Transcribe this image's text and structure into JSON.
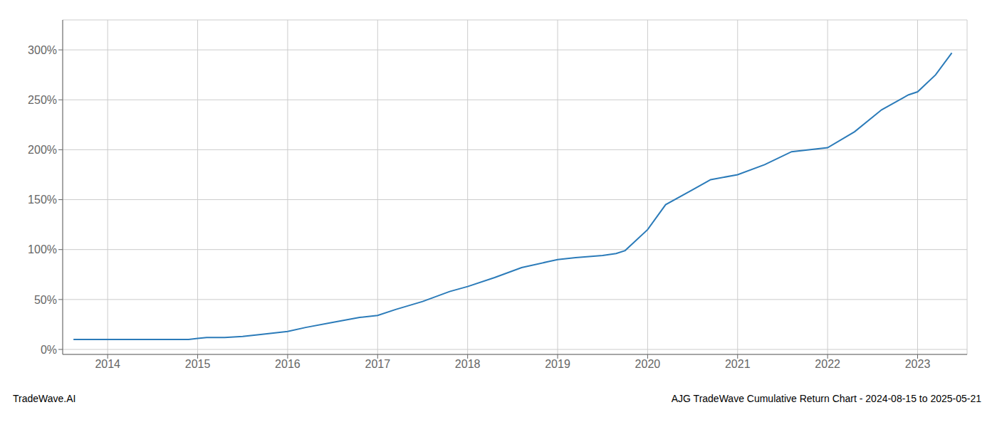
{
  "chart_data": {
    "type": "line",
    "title": "AJG TradeWave Cumulative Return Chart - 2024-08-15 to 2025-05-21",
    "annotations": [
      "TradeWave.AI"
    ],
    "color": "#2b7bb9",
    "grid": true,
    "x": [
      2013.62,
      2014.0,
      2014.1,
      2014.3,
      2014.6,
      2014.9,
      2015.0,
      2015.1,
      2015.3,
      2015.5,
      2015.7,
      2016.0,
      2016.2,
      2016.5,
      2016.8,
      2017.0,
      2017.2,
      2017.5,
      2017.8,
      2018.0,
      2018.3,
      2018.6,
      2018.9,
      2019.0,
      2019.2,
      2019.5,
      2019.65,
      2019.75,
      2020.0,
      2020.2,
      2020.5,
      2020.7,
      2021.0,
      2021.3,
      2021.6,
      2022.0,
      2022.3,
      2022.6,
      2022.9,
      2023.0,
      2023.2,
      2023.38
    ],
    "values": [
      10,
      10,
      10,
      10,
      10,
      10,
      11,
      12,
      12,
      13,
      15,
      18,
      22,
      27,
      32,
      34,
      40,
      48,
      58,
      63,
      72,
      82,
      88,
      90,
      92,
      94,
      96,
      99,
      120,
      145,
      160,
      170,
      175,
      185,
      198,
      202,
      218,
      240,
      255,
      258,
      275,
      297
    ],
    "xlim": [
      2013.5,
      2023.55
    ],
    "ylim": [
      -5,
      330
    ],
    "xticks": [
      2014,
      2015,
      2016,
      2017,
      2018,
      2019,
      2020,
      2021,
      2022,
      2023
    ],
    "yticks": [
      {
        "value": 0,
        "label": "0%"
      },
      {
        "value": 50,
        "label": "50%"
      },
      {
        "value": 100,
        "label": "100%"
      },
      {
        "value": 150,
        "label": "150%"
      },
      {
        "value": 200,
        "label": "200%"
      },
      {
        "value": 250,
        "label": "250%"
      },
      {
        "value": 300,
        "label": "300%"
      }
    ]
  }
}
